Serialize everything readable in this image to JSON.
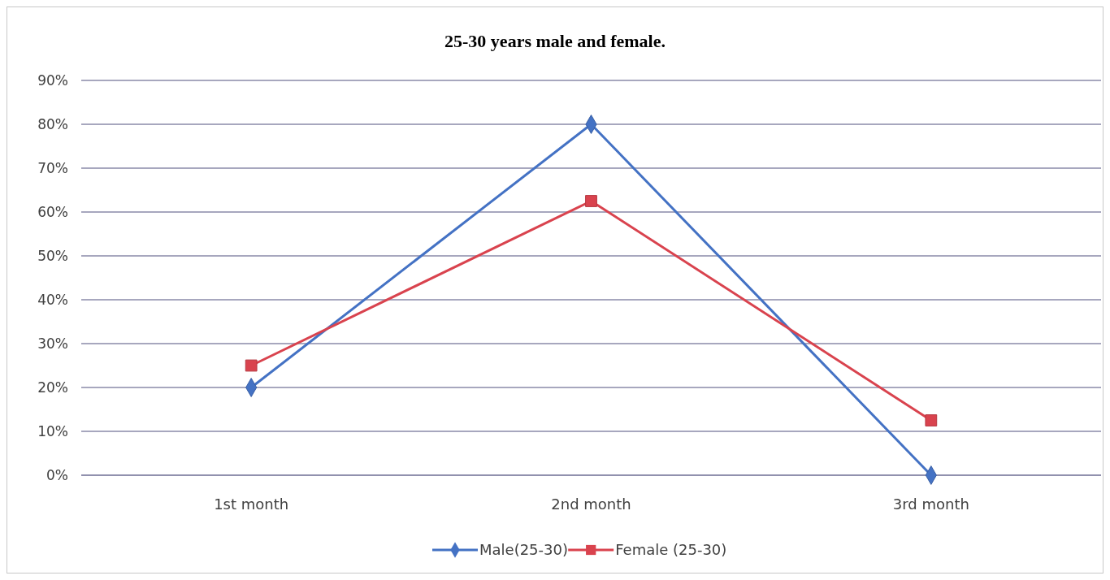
{
  "chart_data": {
    "type": "line",
    "title": "25-30 years male and female.",
    "categories": [
      "1st month",
      "2nd month",
      "3rd month"
    ],
    "series": [
      {
        "name": "Male(25-30)",
        "color": "#4472c4",
        "values": [
          20,
          80,
          0
        ],
        "marker": "diamond"
      },
      {
        "name": "Female (25-30)",
        "color": "#d9434e",
        "values": [
          25,
          62.5,
          12.5
        ],
        "marker": "square"
      }
    ],
    "ylim": [
      0,
      90
    ],
    "yticks": [
      {
        "value": 0,
        "label": "0%"
      },
      {
        "value": 10,
        "label": "10%"
      },
      {
        "value": 20,
        "label": "20%"
      },
      {
        "value": 30,
        "label": "30%"
      },
      {
        "value": 40,
        "label": "40%"
      },
      {
        "value": 50,
        "label": "50%"
      },
      {
        "value": 60,
        "label": "60%"
      },
      {
        "value": 70,
        "label": "70%"
      },
      {
        "value": 80,
        "label": "80%"
      },
      {
        "value": 90,
        "label": "90%"
      }
    ],
    "grid": "y",
    "legend": "bottom",
    "line_style": "solid"
  }
}
